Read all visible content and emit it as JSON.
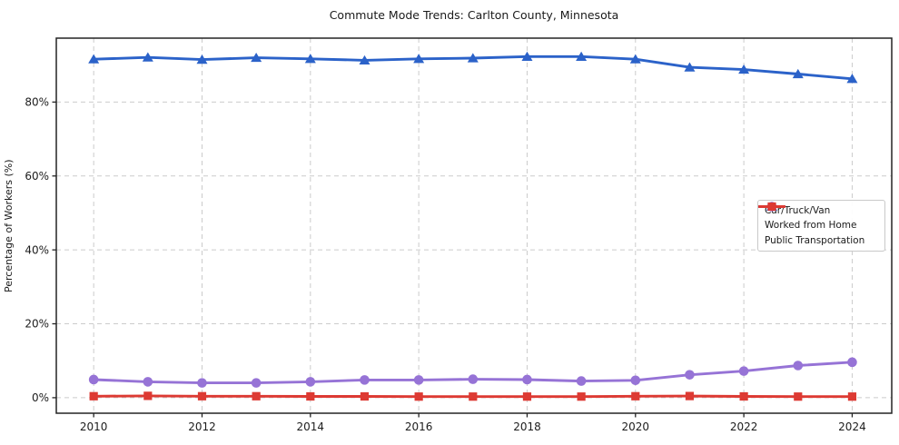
{
  "chart_data": {
    "type": "line",
    "title": "Commute Mode Trends: Carlton County, Minnesota",
    "xlabel": "",
    "ylabel": "Percentage of Workers (%)",
    "x": [
      2010,
      2011,
      2012,
      2013,
      2014,
      2015,
      2016,
      2017,
      2018,
      2019,
      2020,
      2021,
      2022,
      2023,
      2024
    ],
    "series": [
      {
        "name": "Car/Truck/Van",
        "color": "#2b62c9",
        "marker": "triangle",
        "values": [
          91.6,
          92.1,
          91.5,
          92.0,
          91.7,
          91.3,
          91.7,
          91.9,
          92.3,
          92.3,
          91.6,
          89.4,
          88.8,
          87.6,
          86.3
        ]
      },
      {
        "name": "Worked from Home",
        "color": "#9673d6",
        "marker": "circle",
        "values": [
          4.9,
          4.3,
          4.0,
          4.0,
          4.3,
          4.8,
          4.8,
          5.0,
          4.9,
          4.5,
          4.7,
          6.2,
          7.2,
          8.7,
          9.6
        ]
      },
      {
        "name": "Public Transportation",
        "color": "#dd3a33",
        "marker": "square",
        "values": [
          0.4,
          0.5,
          0.4,
          0.4,
          0.35,
          0.35,
          0.3,
          0.3,
          0.3,
          0.3,
          0.4,
          0.45,
          0.35,
          0.3,
          0.3
        ]
      }
    ],
    "xticks": [
      2010,
      2012,
      2014,
      2016,
      2018,
      2020,
      2022,
      2024
    ],
    "xtick_labels": [
      "2010",
      "2012",
      "2014",
      "2016",
      "2018",
      "2020",
      "2022",
      "2024"
    ],
    "yticks": [
      0,
      20,
      40,
      60,
      80
    ],
    "ytick_labels": [
      "0%",
      "20%",
      "40%",
      "60%",
      "80%"
    ],
    "xlim": [
      2009.31,
      2024.73
    ],
    "ylim": [
      -4.2,
      97.3
    ],
    "grid": true,
    "legend_position": "center-right"
  }
}
